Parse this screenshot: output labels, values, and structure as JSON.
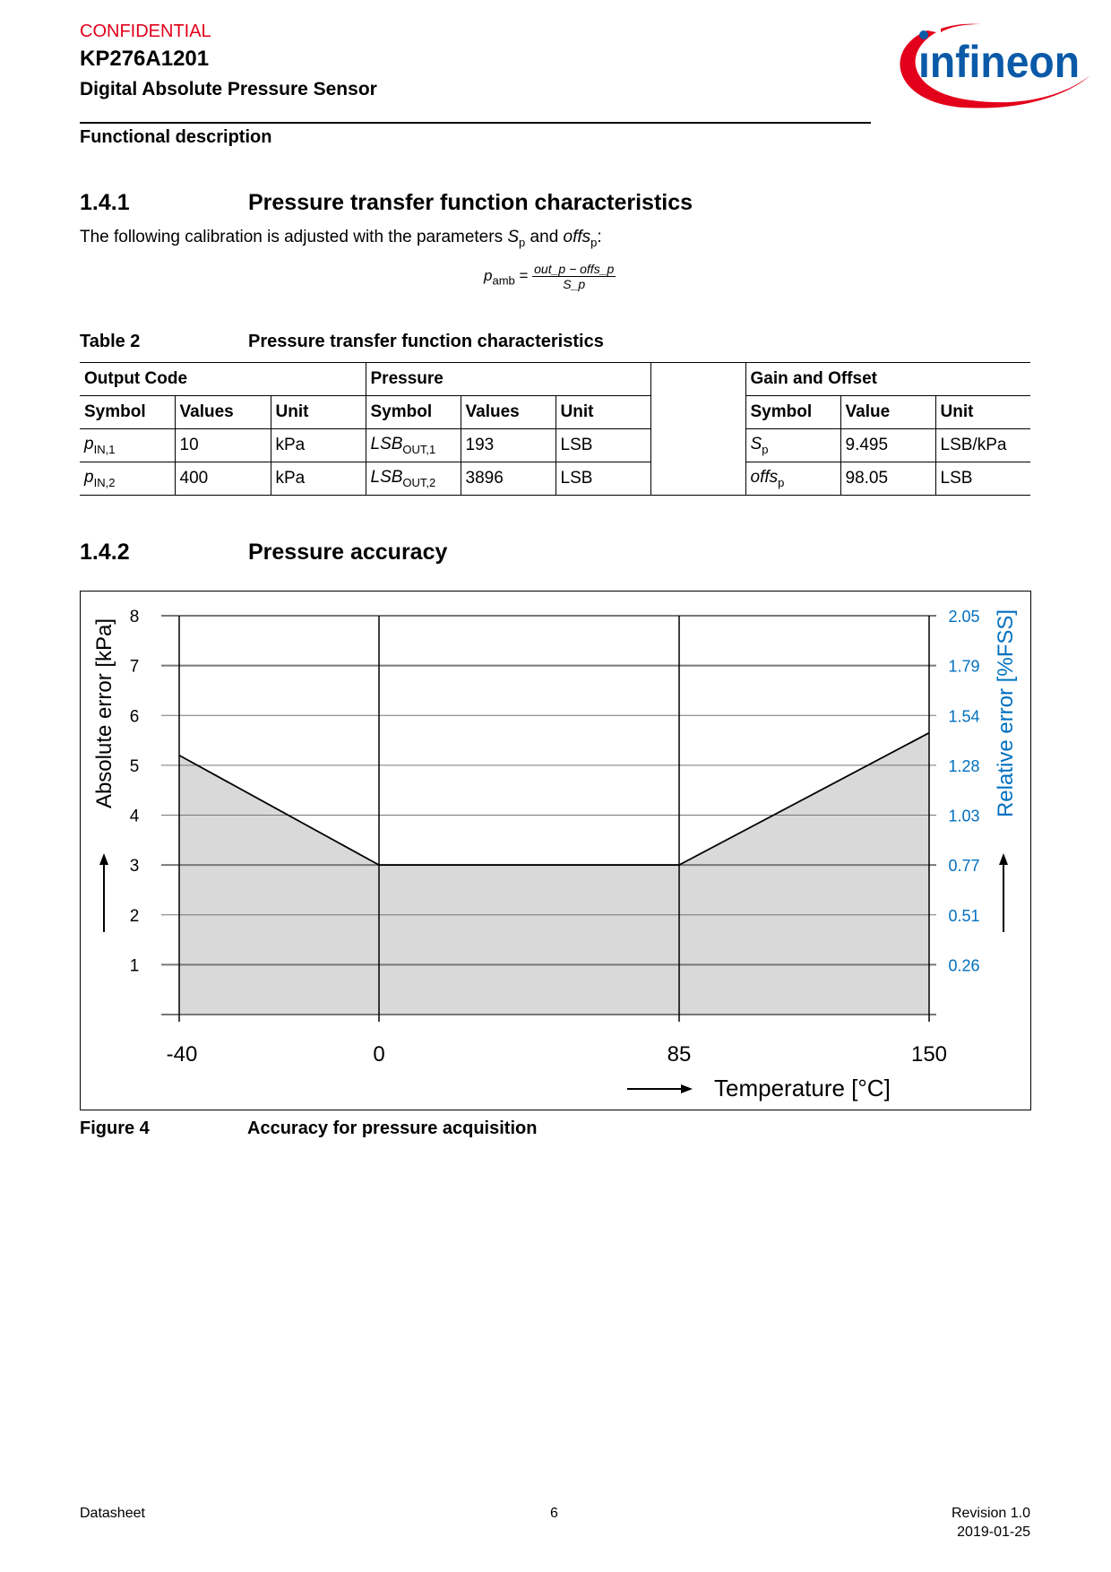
{
  "header": {
    "confidential": "CONFIDENTIAL",
    "part_number": "KP276A1201",
    "product": "Digital Absolute Pressure Sensor",
    "section": "Functional description",
    "logo_text": "infineon"
  },
  "section_141": {
    "number": "1.4.1",
    "title": "Pressure transfer function characteristics",
    "body_prefix": "The following calibration is adjusted with the parameters ",
    "sp": "S",
    "sp_sub": "p",
    "and": " and ",
    "offs": "offs",
    "offs_sub": "p",
    "colon": ":"
  },
  "formula": {
    "lhs": "p",
    "lhs_sub": "amb",
    "eq": " = ",
    "numerator": "out_p − offs_p",
    "denominator": "S_p"
  },
  "table": {
    "caption_num": "Table 2",
    "caption_title": "Pressure transfer function characteristics",
    "groups": [
      "Output Code",
      "Pressure",
      "Gain and Offset"
    ],
    "headers": [
      "Symbol",
      "Values",
      "Unit",
      "Symbol",
      "Values",
      "Unit",
      "Symbol",
      "Value",
      "Unit"
    ],
    "rows": [
      {
        "s1": "p",
        "s1sub": "IN,1",
        "v1": "10",
        "u1": "kPa",
        "s2": "LSB",
        "s2sub": "OUT,1",
        "v2": "193",
        "u2": "LSB",
        "s3": "S",
        "s3sub": "p",
        "v3": "9.495",
        "u3": "LSB/kPa"
      },
      {
        "s1": "p",
        "s1sub": "IN,2",
        "v1": "400",
        "u1": "kPa",
        "s2": "LSB",
        "s2sub": "OUT,2",
        "v2": "3896",
        "u2": "LSB",
        "s3": "offs",
        "s3sub": "p",
        "v3": "98.05",
        "u3": "LSB"
      }
    ]
  },
  "section_142": {
    "number": "1.4.2",
    "title": "Pressure accuracy"
  },
  "chart_data": {
    "type": "area",
    "x": [
      -40,
      0,
      85,
      150
    ],
    "values": [
      5.2,
      3,
      3,
      5.65
    ],
    "xlabel": "Temperature [°C]",
    "ylabel": "Absolute error [kPa]",
    "y2label": "Relative error [%FSS]",
    "xticks": [
      "-40",
      "0",
      "85",
      "150"
    ],
    "yticks": [
      "1",
      "2",
      "3",
      "4",
      "5",
      "6",
      "7",
      "8"
    ],
    "y2ticks": [
      "0.26",
      "0.51",
      "0.77",
      "1.03",
      "1.28",
      "1.54",
      "1.79",
      "2.05"
    ],
    "ylim": [
      0,
      8
    ],
    "grid": true,
    "fill_color": "#d9d9d9",
    "y2_color": "#0070c0"
  },
  "figure": {
    "caption_num": "Figure 4",
    "caption_title": "Accuracy for pressure acquisition"
  },
  "footer": {
    "left": "Datasheet",
    "page": "6",
    "revision": "Revision 1.0",
    "date": "2019-01-25"
  },
  "colors": {
    "confidential": "#e2001a",
    "logo_blue": "#0a5aa8",
    "logo_red": "#e2001a"
  }
}
